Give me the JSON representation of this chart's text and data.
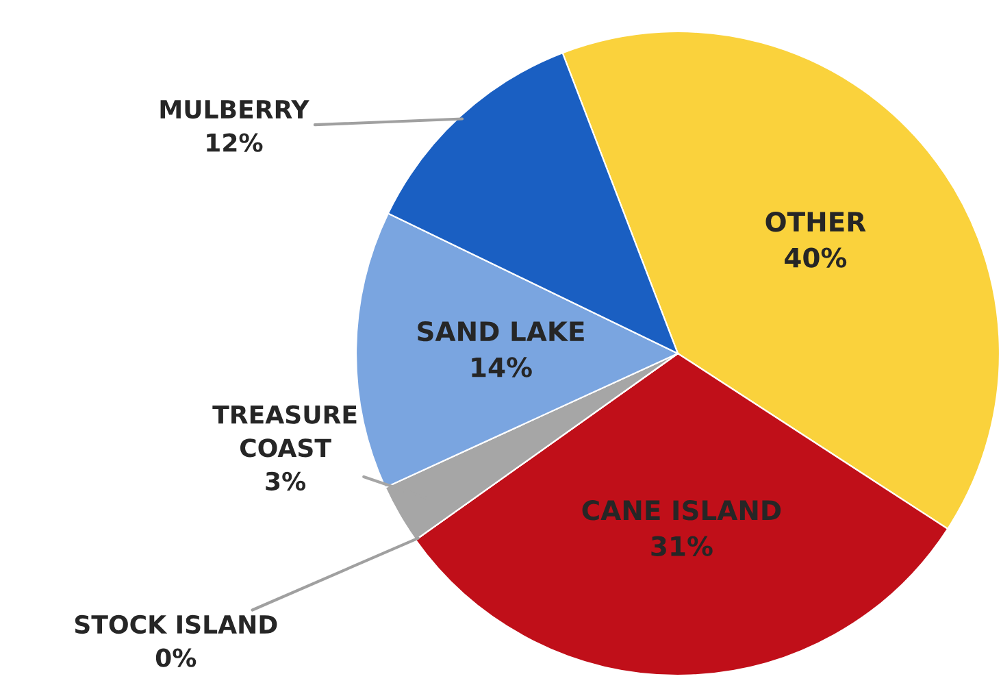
{
  "chart_data": {
    "type": "pie",
    "categories": [
      "OTHER",
      "CANE ISLAND",
      "STOCK ISLAND",
      "TREASURE COAST",
      "SAND LAKE",
      "MULBERRY"
    ],
    "values": [
      40,
      31,
      0,
      3,
      14,
      12
    ],
    "value_labels": [
      "40%",
      "31%",
      "0%",
      "3%",
      "14%",
      "12%"
    ],
    "colors": [
      "#fad23c",
      "#c00f19",
      "#7f7f7f",
      "#a6a6a6",
      "#7aa5e0",
      "#1a5fc2"
    ],
    "legend": false
  }
}
